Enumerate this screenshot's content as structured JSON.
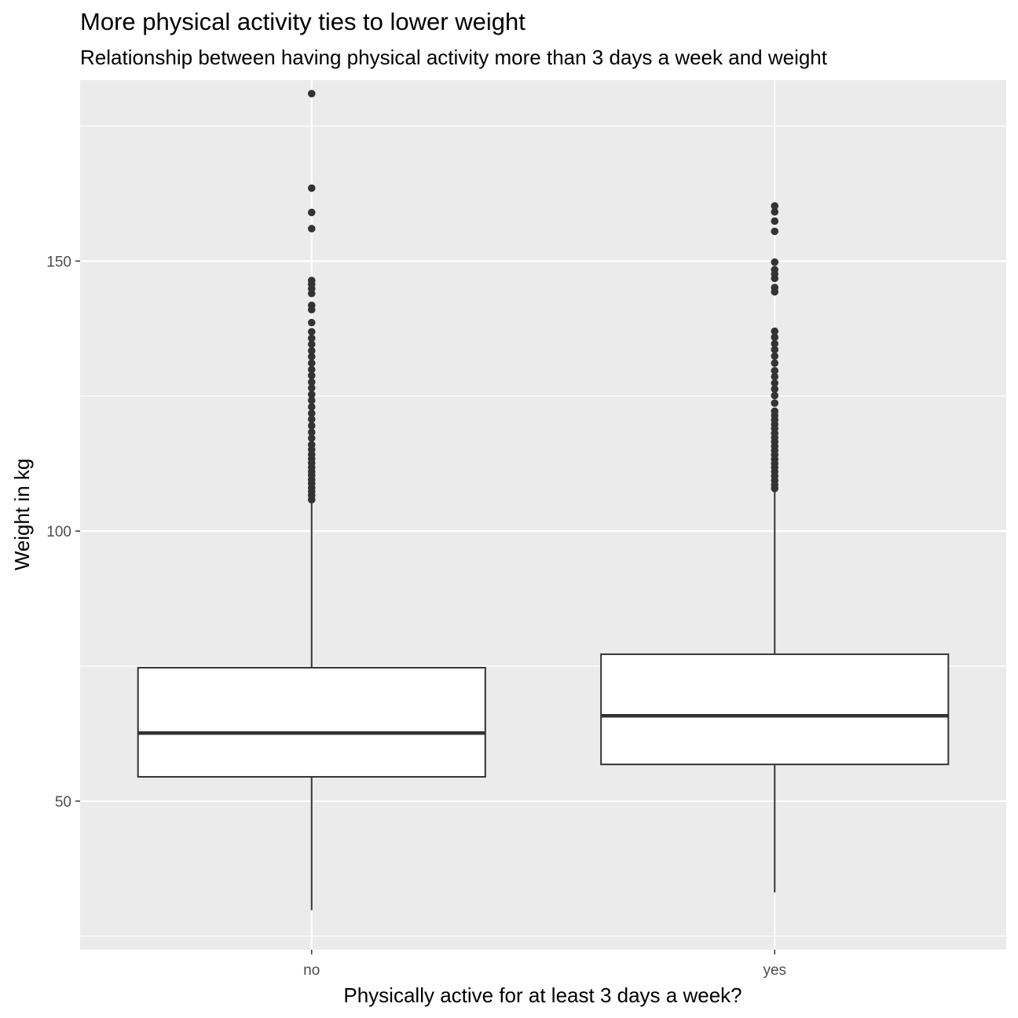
{
  "chart_data": {
    "type": "boxplot",
    "title": "More physical activity ties to lower weight",
    "subtitle": "Relationship between having physical activity more than 3 days a week and weight",
    "xlabel": "Physically active for at least 3 days a week?",
    "ylabel": "Weight in kg",
    "ylim": [
      22.5,
      183.5
    ],
    "yticks": [
      50,
      100,
      150
    ],
    "ytick_labels": [
      "50",
      "100",
      "150"
    ],
    "grid": true,
    "categories": [
      "no",
      "yes"
    ],
    "boxes": [
      {
        "category": "no",
        "whisker_low": 29.8,
        "q1": 54.5,
        "median": 62.6,
        "q3": 74.7,
        "whisker_high": 105.2,
        "outliers": [
          105.8,
          106.6,
          107.3,
          108.0,
          108.8,
          109.5,
          110.3,
          111.0,
          111.8,
          112.6,
          113.4,
          114.2,
          115.1,
          116.0,
          117.2,
          118.3,
          119.5,
          120.7,
          121.8,
          123.0,
          124.2,
          125.3,
          126.5,
          127.6,
          128.8,
          129.9,
          131.1,
          132.3,
          133.4,
          134.6,
          135.7,
          136.9,
          138.6,
          141.0,
          141.8,
          144.0,
          144.9,
          145.7,
          146.4,
          156.0,
          159.0,
          163.5,
          181.0
        ]
      },
      {
        "category": "yes",
        "whisker_low": 33.1,
        "q1": 56.8,
        "median": 65.8,
        "q3": 77.2,
        "whisker_high": 107.4,
        "outliers": [
          107.9,
          108.6,
          109.4,
          110.2,
          111.0,
          111.8,
          112.5,
          113.3,
          114.1,
          114.9,
          115.7,
          116.5,
          117.3,
          118.1,
          119.0,
          119.8,
          120.6,
          121.4,
          122.2,
          123.7,
          125.1,
          126.3,
          127.4,
          128.6,
          129.7,
          131.1,
          132.4,
          133.6,
          134.7,
          135.9,
          137.0,
          144.3,
          145.1,
          146.8,
          147.6,
          148.4,
          149.8,
          155.5,
          157.4,
          159.1,
          160.2
        ]
      }
    ]
  }
}
